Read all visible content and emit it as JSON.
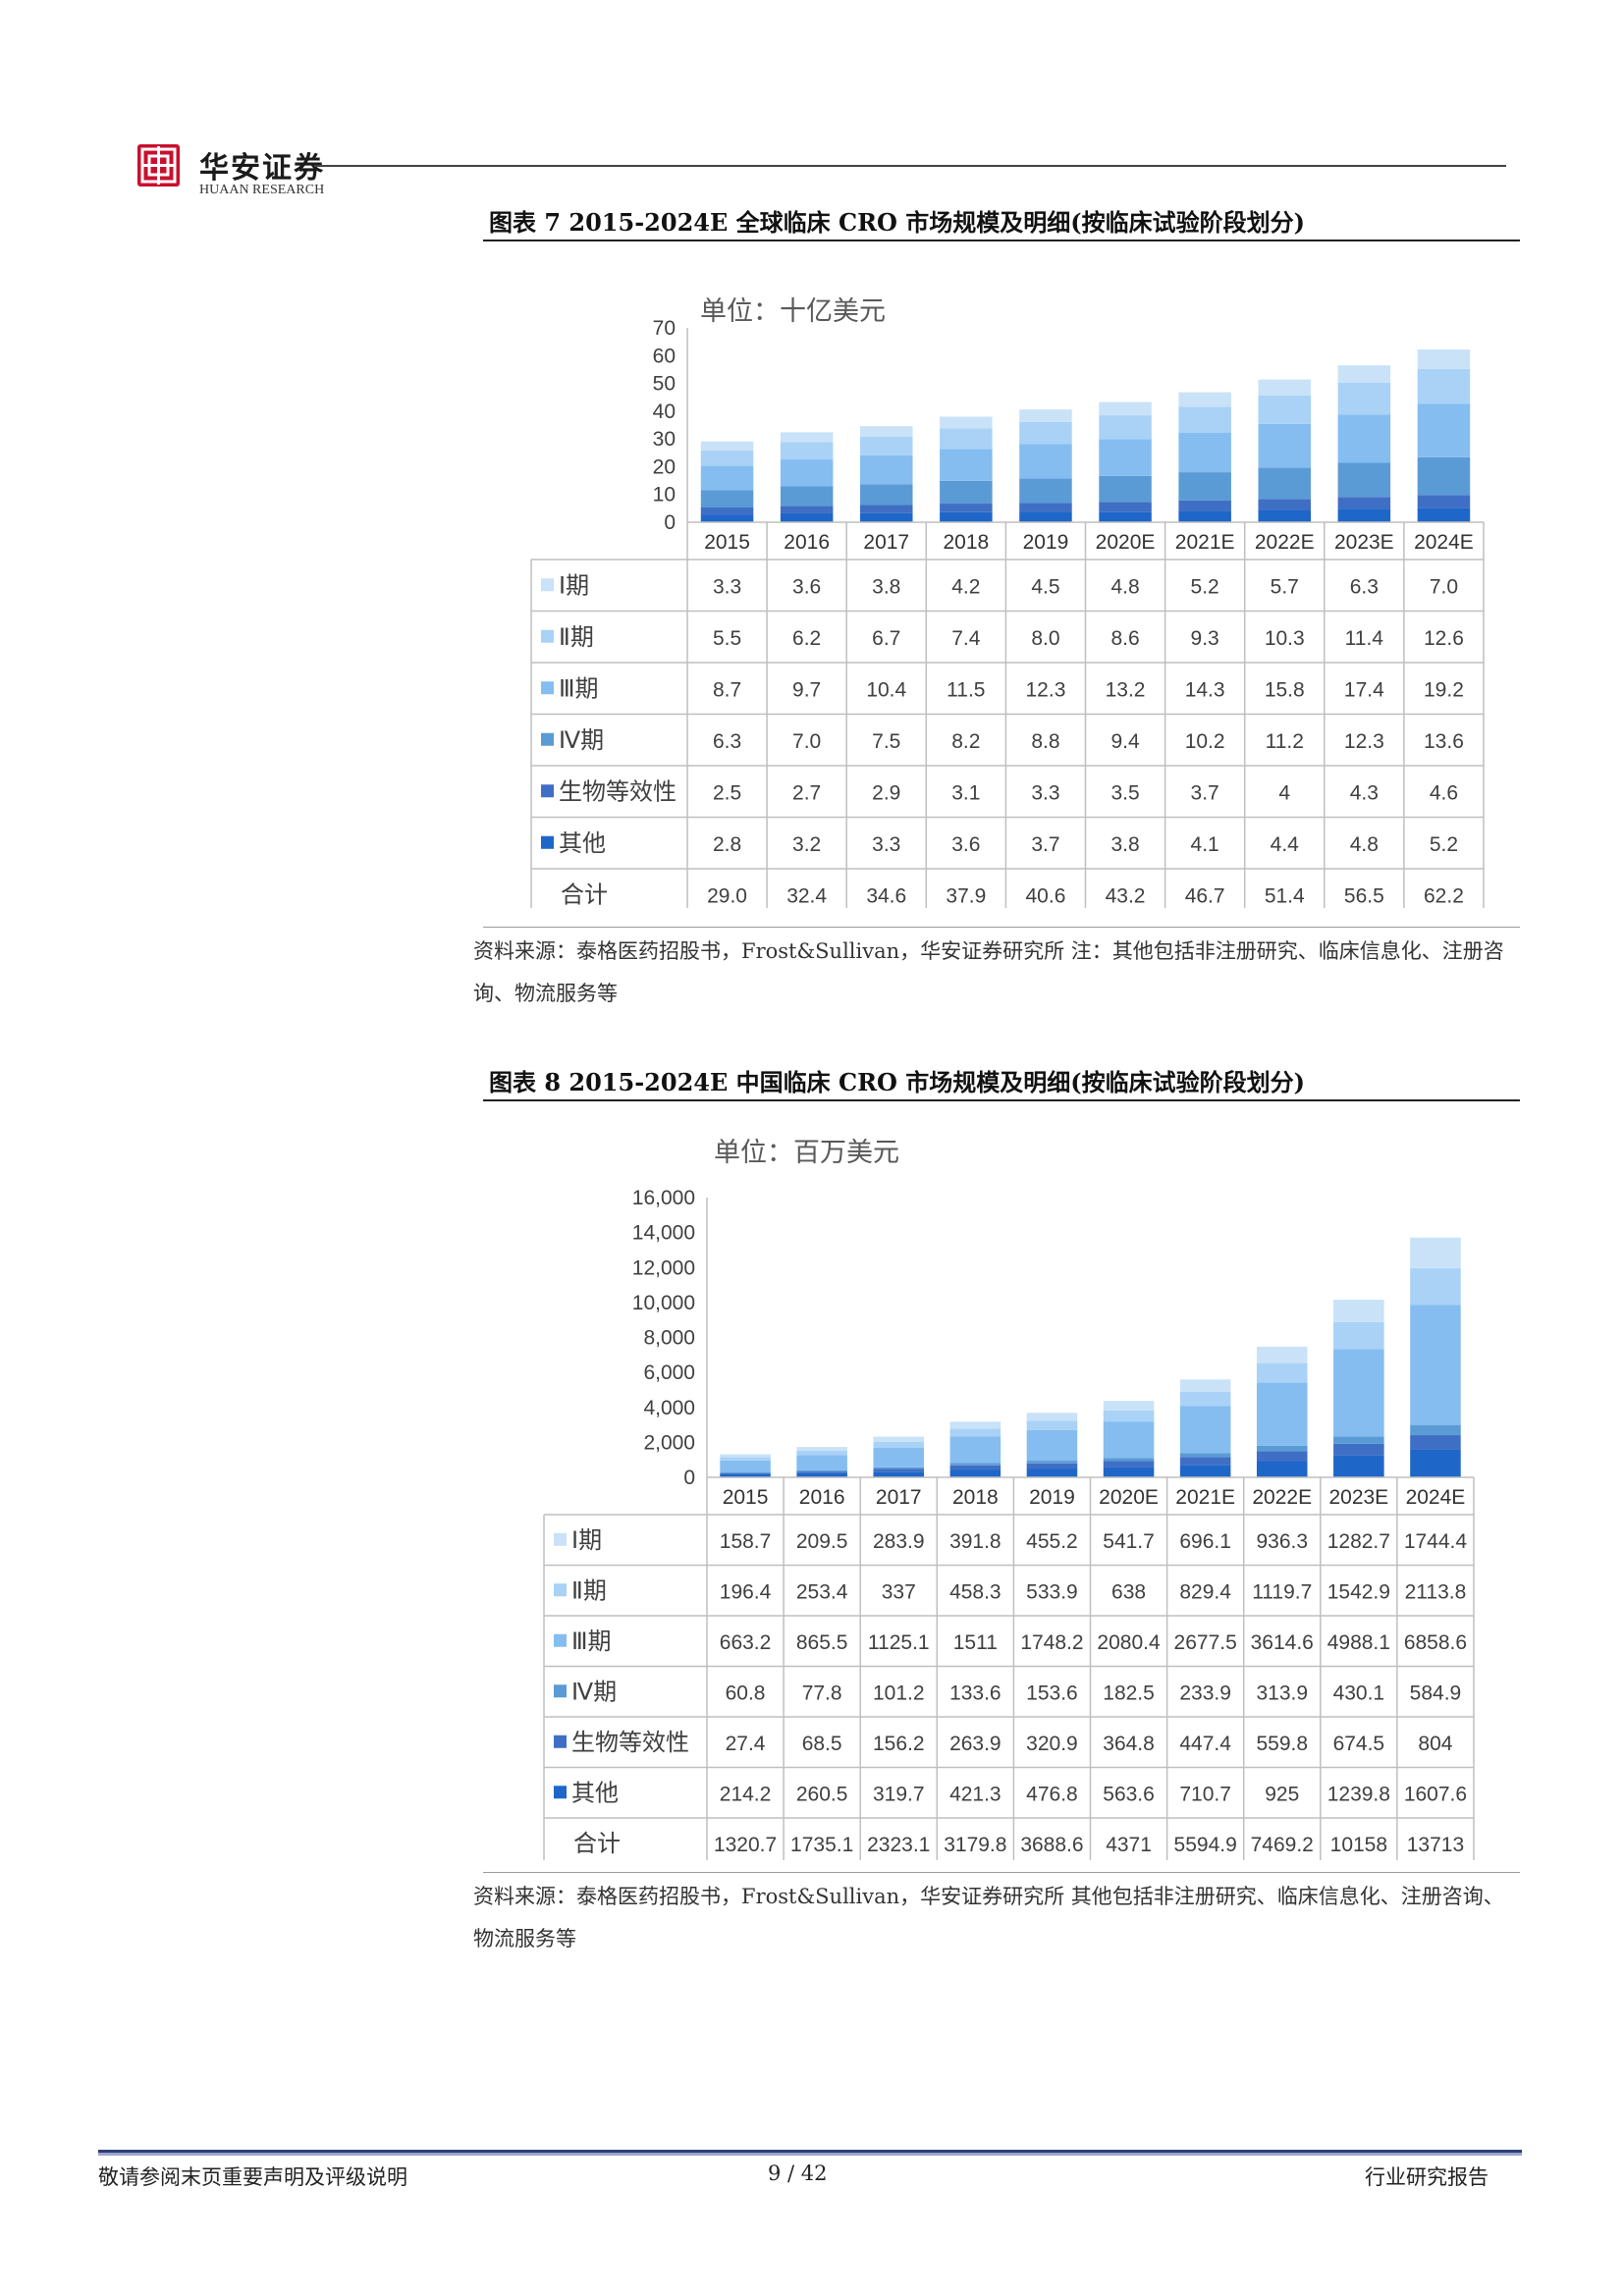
{
  "header": {
    "brand_cn": "华安证券",
    "brand_en": "HUAAN RESEARCH"
  },
  "colors": {
    "series": [
      "#c9e2f8",
      "#a9d2f6",
      "#85bdf0",
      "#5b9bd5",
      "#3f6fc4",
      "#1f66c9"
    ],
    "grid_border": "#bfbfbf",
    "footer_rule": "#2e3e76"
  },
  "figures": [
    {
      "title": "图表 7 2015-2024E 全球临床 CRO 市场规模及明细(按临床试验阶段划分)",
      "source": "资料来源：泰格医药招股书，Frost&Sullivan，华安证券研究所 注：其他包括非注册研究、临床信息化、注册咨询、物流服务等"
    },
    {
      "title": "图表 8 2015-2024E 中国临床 CRO 市场规模及明细(按临床试验阶段划分)",
      "source": "资料来源：泰格医药招股书，Frost&Sullivan，华安证券研究所 其他包括非注册研究、临床信息化、注册咨询、物流服务等"
    }
  ],
  "chart_data": [
    {
      "type": "bar",
      "stacked": true,
      "unit_label": "单位：十亿美元",
      "categories": [
        "2015",
        "2016",
        "2017",
        "2018",
        "2019",
        "2020E",
        "2021E",
        "2022E",
        "2023E",
        "2024E"
      ],
      "ylim": [
        0,
        70
      ],
      "yticks": [
        "0",
        "10",
        "20",
        "30",
        "40",
        "50",
        "60",
        "70"
      ],
      "series": [
        {
          "name": "Ⅰ期",
          "values": [
            3.3,
            3.6,
            3.8,
            4.2,
            4.5,
            4.8,
            5.2,
            5.7,
            6.3,
            7.0
          ],
          "labels": [
            "3.3",
            "3.6",
            "3.8",
            "4.2",
            "4.5",
            "4.8",
            "5.2",
            "5.7",
            "6.3",
            "7.0"
          ]
        },
        {
          "name": "Ⅱ期",
          "values": [
            5.5,
            6.2,
            6.7,
            7.4,
            8.0,
            8.6,
            9.3,
            10.3,
            11.4,
            12.6
          ],
          "labels": [
            "5.5",
            "6.2",
            "6.7",
            "7.4",
            "8.0",
            "8.6",
            "9.3",
            "10.3",
            "11.4",
            "12.6"
          ]
        },
        {
          "name": "Ⅲ期",
          "values": [
            8.7,
            9.7,
            10.4,
            11.5,
            12.3,
            13.2,
            14.3,
            15.8,
            17.4,
            19.2
          ],
          "labels": [
            "8.7",
            "9.7",
            "10.4",
            "11.5",
            "12.3",
            "13.2",
            "14.3",
            "15.8",
            "17.4",
            "19.2"
          ]
        },
        {
          "name": "Ⅳ期",
          "values": [
            6.3,
            7.0,
            7.5,
            8.2,
            8.8,
            9.4,
            10.2,
            11.2,
            12.3,
            13.6
          ],
          "labels": [
            "6.3",
            "7.0",
            "7.5",
            "8.2",
            "8.8",
            "9.4",
            "10.2",
            "11.2",
            "12.3",
            "13.6"
          ]
        },
        {
          "name": "生物等效性",
          "values": [
            2.5,
            2.7,
            2.9,
            3.1,
            3.3,
            3.5,
            3.7,
            4,
            4.3,
            4.6
          ],
          "labels": [
            "2.5",
            "2.7",
            "2.9",
            "3.1",
            "3.3",
            "3.5",
            "3.7",
            "4",
            "4.3",
            "4.6"
          ]
        },
        {
          "name": "其他",
          "values": [
            2.8,
            3.2,
            3.3,
            3.6,
            3.7,
            3.8,
            4.1,
            4.4,
            4.8,
            5.2
          ],
          "labels": [
            "2.8",
            "3.2",
            "3.3",
            "3.6",
            "3.7",
            "3.8",
            "4.1",
            "4.4",
            "4.8",
            "5.2"
          ]
        }
      ],
      "total": {
        "name": "合计",
        "values": [
          29.0,
          32.4,
          34.6,
          37.9,
          40.6,
          43.2,
          46.7,
          51.4,
          56.5,
          62.2
        ],
        "labels": [
          "29.0",
          "32.4",
          "34.6",
          "37.9",
          "40.6",
          "43.2",
          "46.7",
          "51.4",
          "56.5",
          "62.2"
        ]
      },
      "legend": "data-table"
    },
    {
      "type": "bar",
      "stacked": true,
      "unit_label": "单位：百万美元",
      "categories": [
        "2015",
        "2016",
        "2017",
        "2018",
        "2019",
        "2020E",
        "2021E",
        "2022E",
        "2023E",
        "2024E"
      ],
      "ylim": [
        0,
        16000
      ],
      "yticks": [
        "0",
        "2,000",
        "4,000",
        "6,000",
        "8,000",
        "10,000",
        "12,000",
        "14,000",
        "16,000"
      ],
      "series": [
        {
          "name": "Ⅰ期",
          "values": [
            158.7,
            209.5,
            283.9,
            391.8,
            455.2,
            541.7,
            696.1,
            936.3,
            1282.7,
            1744.4
          ],
          "labels": [
            "158.7",
            "209.5",
            "283.9",
            "391.8",
            "455.2",
            "541.7",
            "696.1",
            "936.3",
            "1282.7",
            "1744.4"
          ]
        },
        {
          "name": "Ⅱ期",
          "values": [
            196.4,
            253.4,
            337,
            458.3,
            533.9,
            638,
            829.4,
            1119.7,
            1542.9,
            2113.8
          ],
          "labels": [
            "196.4",
            "253.4",
            "337",
            "458.3",
            "533.9",
            "638",
            "829.4",
            "1119.7",
            "1542.9",
            "2113.8"
          ]
        },
        {
          "name": "Ⅲ期",
          "values": [
            663.2,
            865.5,
            1125.1,
            1511,
            1748.2,
            2080.4,
            2677.5,
            3614.6,
            4988.1,
            6858.6
          ],
          "labels": [
            "663.2",
            "865.5",
            "1125.1",
            "1511",
            "1748.2",
            "2080.4",
            "2677.5",
            "3614.6",
            "4988.1",
            "6858.6"
          ]
        },
        {
          "name": "Ⅳ期",
          "values": [
            60.8,
            77.8,
            101.2,
            133.6,
            153.6,
            182.5,
            233.9,
            313.9,
            430.1,
            584.9
          ],
          "labels": [
            "60.8",
            "77.8",
            "101.2",
            "133.6",
            "153.6",
            "182.5",
            "233.9",
            "313.9",
            "430.1",
            "584.9"
          ]
        },
        {
          "name": "生物等效性",
          "values": [
            27.4,
            68.5,
            156.2,
            263.9,
            320.9,
            364.8,
            447.4,
            559.8,
            674.5,
            804
          ],
          "labels": [
            "27.4",
            "68.5",
            "156.2",
            "263.9",
            "320.9",
            "364.8",
            "447.4",
            "559.8",
            "674.5",
            "804"
          ]
        },
        {
          "name": "其他",
          "values": [
            214.2,
            260.5,
            319.7,
            421.3,
            476.8,
            563.6,
            710.7,
            925,
            1239.8,
            1607.6
          ],
          "labels": [
            "214.2",
            "260.5",
            "319.7",
            "421.3",
            "476.8",
            "563.6",
            "710.7",
            "925",
            "1239.8",
            "1607.6"
          ]
        }
      ],
      "total": {
        "name": "合计",
        "values": [
          1320.7,
          1735.1,
          2323.1,
          3179.8,
          3688.6,
          4371,
          5594.9,
          7469.2,
          10158,
          13713
        ],
        "labels": [
          "1320.7",
          "1735.1",
          "2323.1",
          "3179.8",
          "3688.6",
          "4371",
          "5594.9",
          "7469.2",
          "10158",
          "13713"
        ]
      },
      "legend": "data-table"
    }
  ],
  "footer": {
    "left": "敬请参阅末页重要声明及评级说明",
    "page": "9 / 42",
    "right": "行业研究报告"
  }
}
